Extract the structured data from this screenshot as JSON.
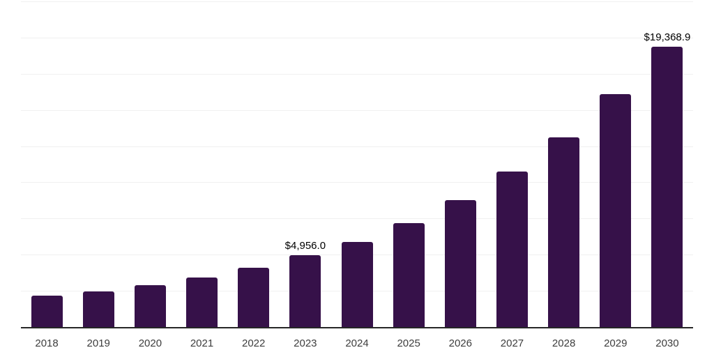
{
  "chart_style": {
    "background": "#ffffff",
    "bar_color": "#361149",
    "gridline_color": "#f0f0f0",
    "axis_line_color": "#262626",
    "tick_label_color": "#3d3d3d",
    "data_label_color": "#000000"
  },
  "chart_data": {
    "type": "bar",
    "title": "",
    "xlabel": "",
    "ylabel": "",
    "categories": [
      "2018",
      "2019",
      "2020",
      "2021",
      "2022",
      "2023",
      "2024",
      "2025",
      "2026",
      "2027",
      "2028",
      "2029",
      "2030"
    ],
    "values": [
      2150,
      2480,
      2900,
      3440,
      4110,
      4956.0,
      5890,
      7180,
      8770,
      10730,
      13120,
      16090,
      19368.9
    ],
    "data_labels": [
      "",
      "",
      "",
      "",
      "",
      "$4,956.0",
      "",
      "",
      "",
      "",
      "",
      "",
      "$19,368.9"
    ],
    "labeled_points": [
      {
        "category": "2023",
        "label": "$4,956.0",
        "value": 4956.0
      },
      {
        "category": "2030",
        "label": "$19,368.9",
        "value": 19368.9
      }
    ],
    "ylim": [
      0,
      22500
    ],
    "gridline_interval": 2500,
    "grid": true,
    "legend": false,
    "y_axis_tick_labels_visible": false
  }
}
